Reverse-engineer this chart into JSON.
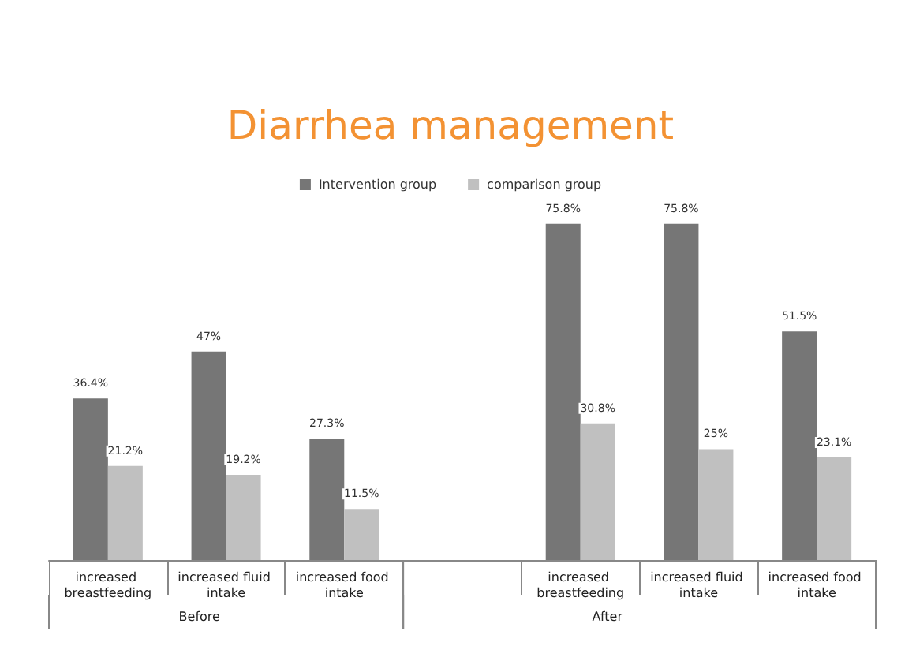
{
  "chart_data": {
    "type": "bar",
    "title": "Diarrhea management",
    "categories": [
      "increased breastfeeding",
      "increased fluid intake",
      "increased food intake",
      null,
      "increased breastfeeding",
      "increased fluid intake",
      "increased food intake"
    ],
    "series": [
      {
        "name": "Intervention group",
        "color": "#767676",
        "values": [
          36.4,
          47,
          27.3,
          null,
          75.8,
          75.8,
          51.5
        ],
        "value_labels": [
          "36.4%",
          "47%",
          "27.3%",
          null,
          "75.8%",
          "75.8%",
          "51.5%"
        ]
      },
      {
        "name": "comparison group",
        "color": "#c0c0c0",
        "values": [
          21.2,
          19.2,
          11.5,
          null,
          30.8,
          25,
          23.1
        ],
        "value_labels": [
          "21.2%",
          "19.2%",
          "11.5%",
          null,
          "30.8%",
          "25%",
          "23.1%"
        ]
      }
    ],
    "annotations": [
      "Before",
      "After"
    ],
    "grid": false,
    "legend": "top"
  }
}
